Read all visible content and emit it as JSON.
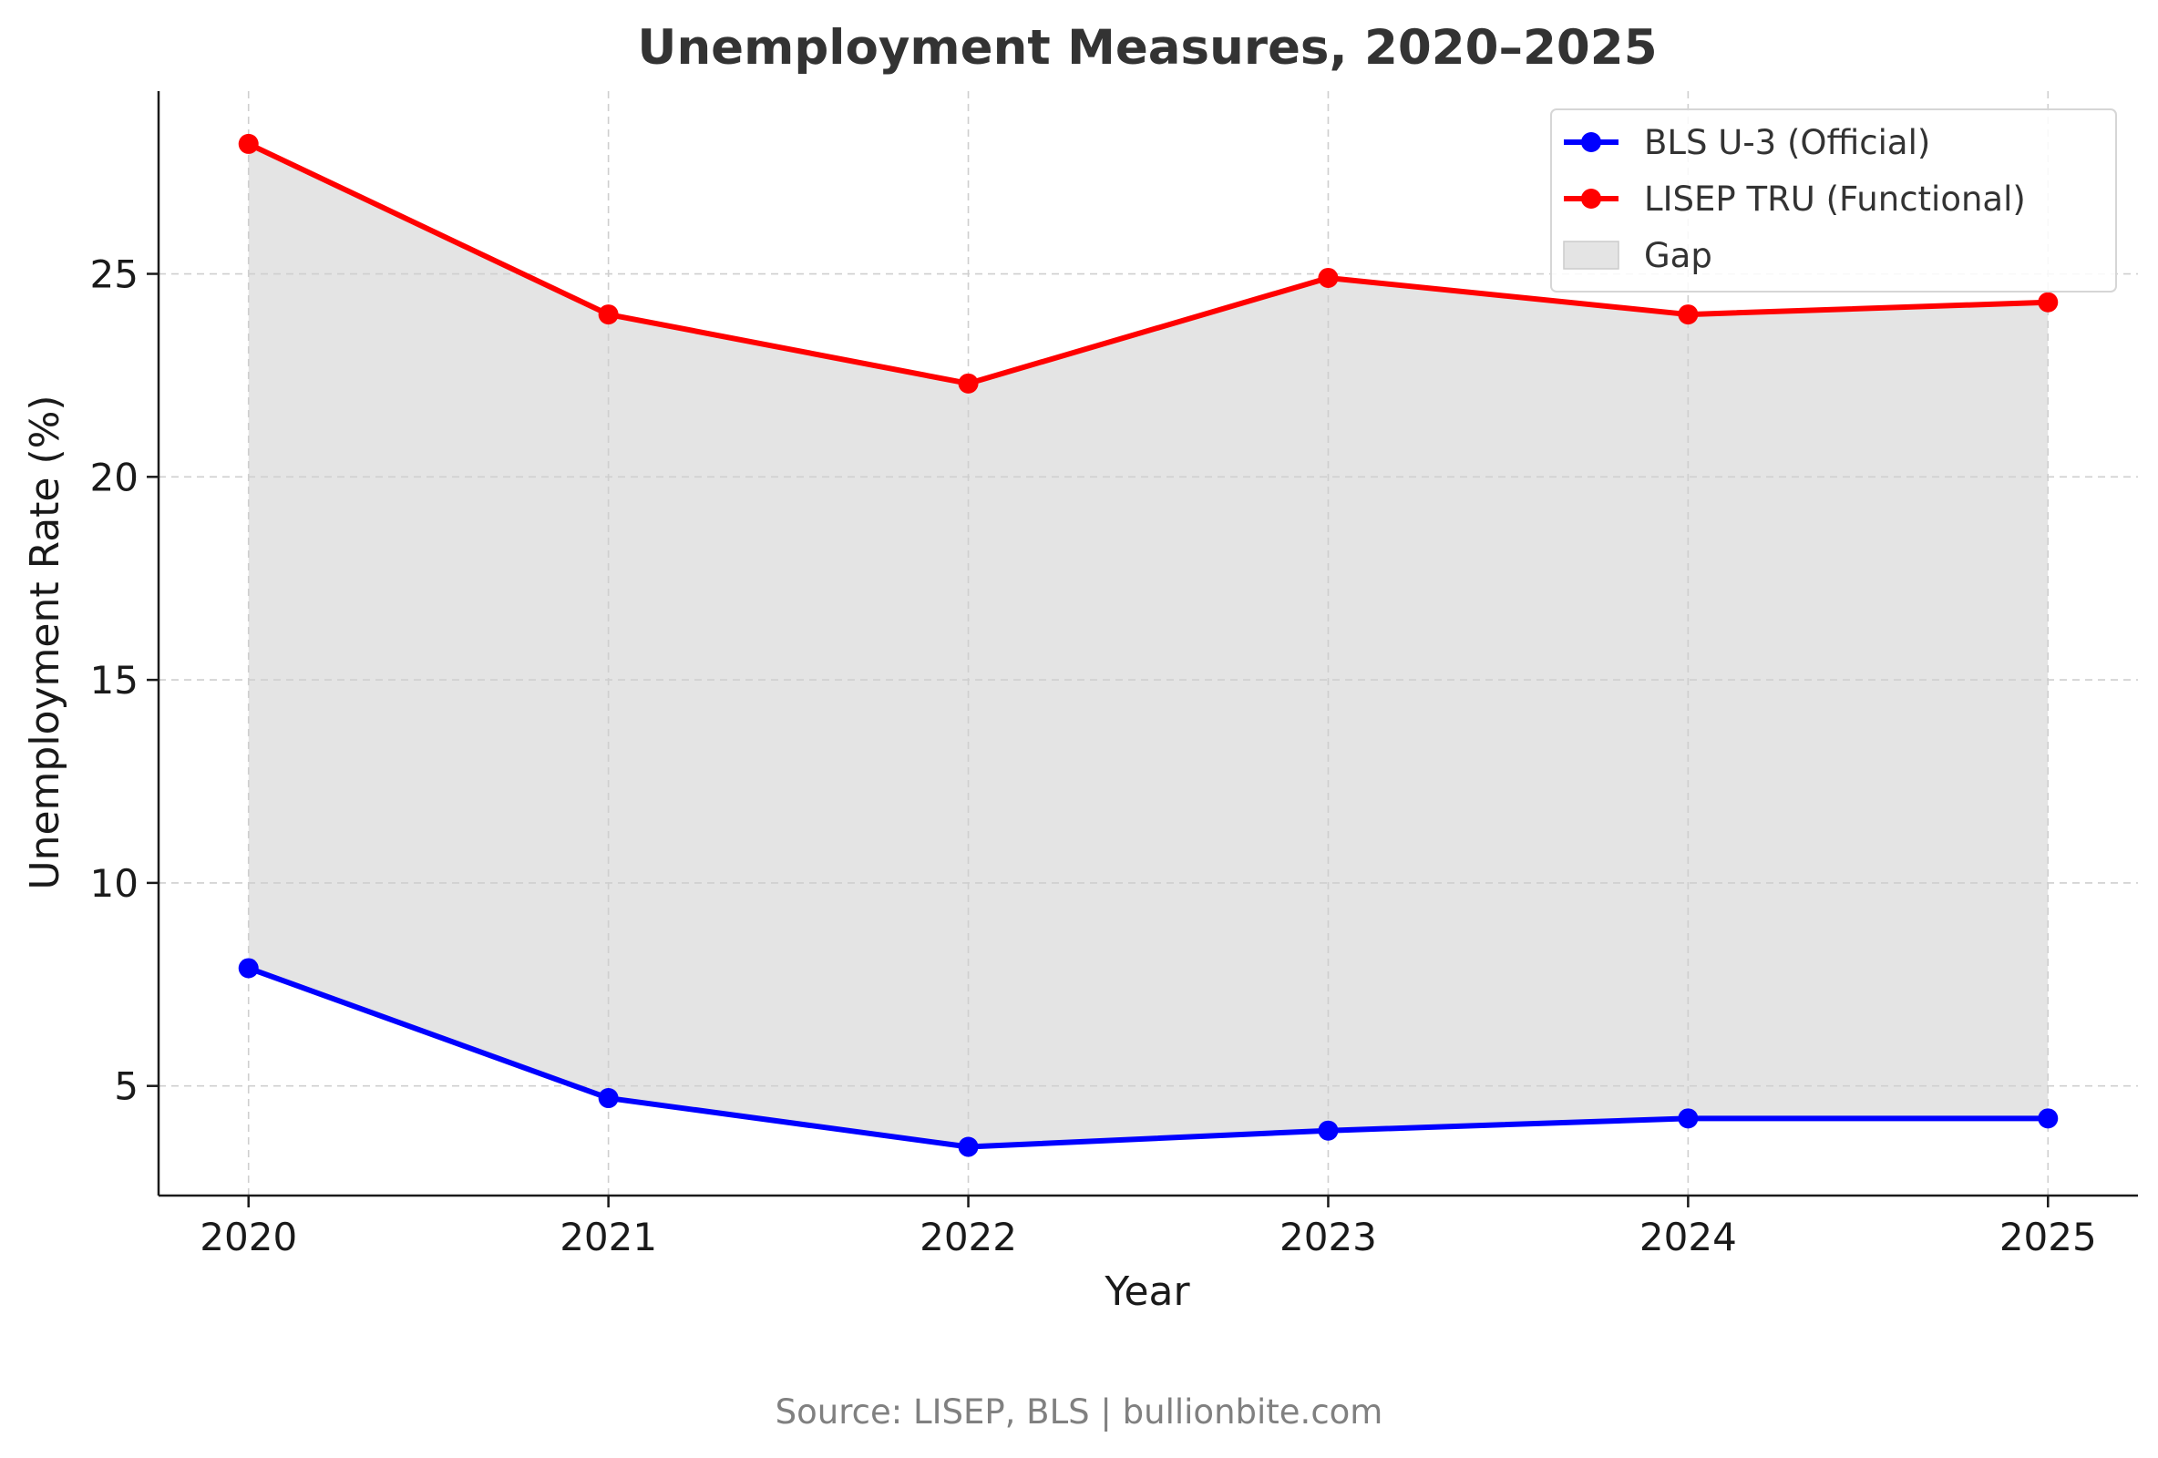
{
  "chart_data": {
    "type": "line",
    "title": "Unemployment Measures, 2020–2025",
    "xlabel": "Year",
    "ylabel": "Unemployment Rate (%)",
    "x": [
      "2020",
      "2021",
      "2022",
      "2023",
      "2024",
      "2025"
    ],
    "xlim": [
      2019.75,
      2025.25
    ],
    "ylim": [
      2.3,
      29.5
    ],
    "yticks": [
      5,
      10,
      15,
      20,
      25
    ],
    "grid": true,
    "legend_position": "top-right",
    "series": [
      {
        "name": "BLS U-3 (Official)",
        "color": "#0000ff",
        "values": [
          7.9,
          4.7,
          3.5,
          3.9,
          4.2,
          4.2
        ]
      },
      {
        "name": "LISEP TRU (Functional)",
        "color": "#ff0000",
        "values": [
          28.2,
          24.0,
          22.3,
          24.9,
          24.0,
          24.3
        ]
      }
    ],
    "fill_between": {
      "name": "Gap",
      "color": "#e4e4e4"
    },
    "source": "Source: LISEP, BLS | bullionbite.com"
  }
}
